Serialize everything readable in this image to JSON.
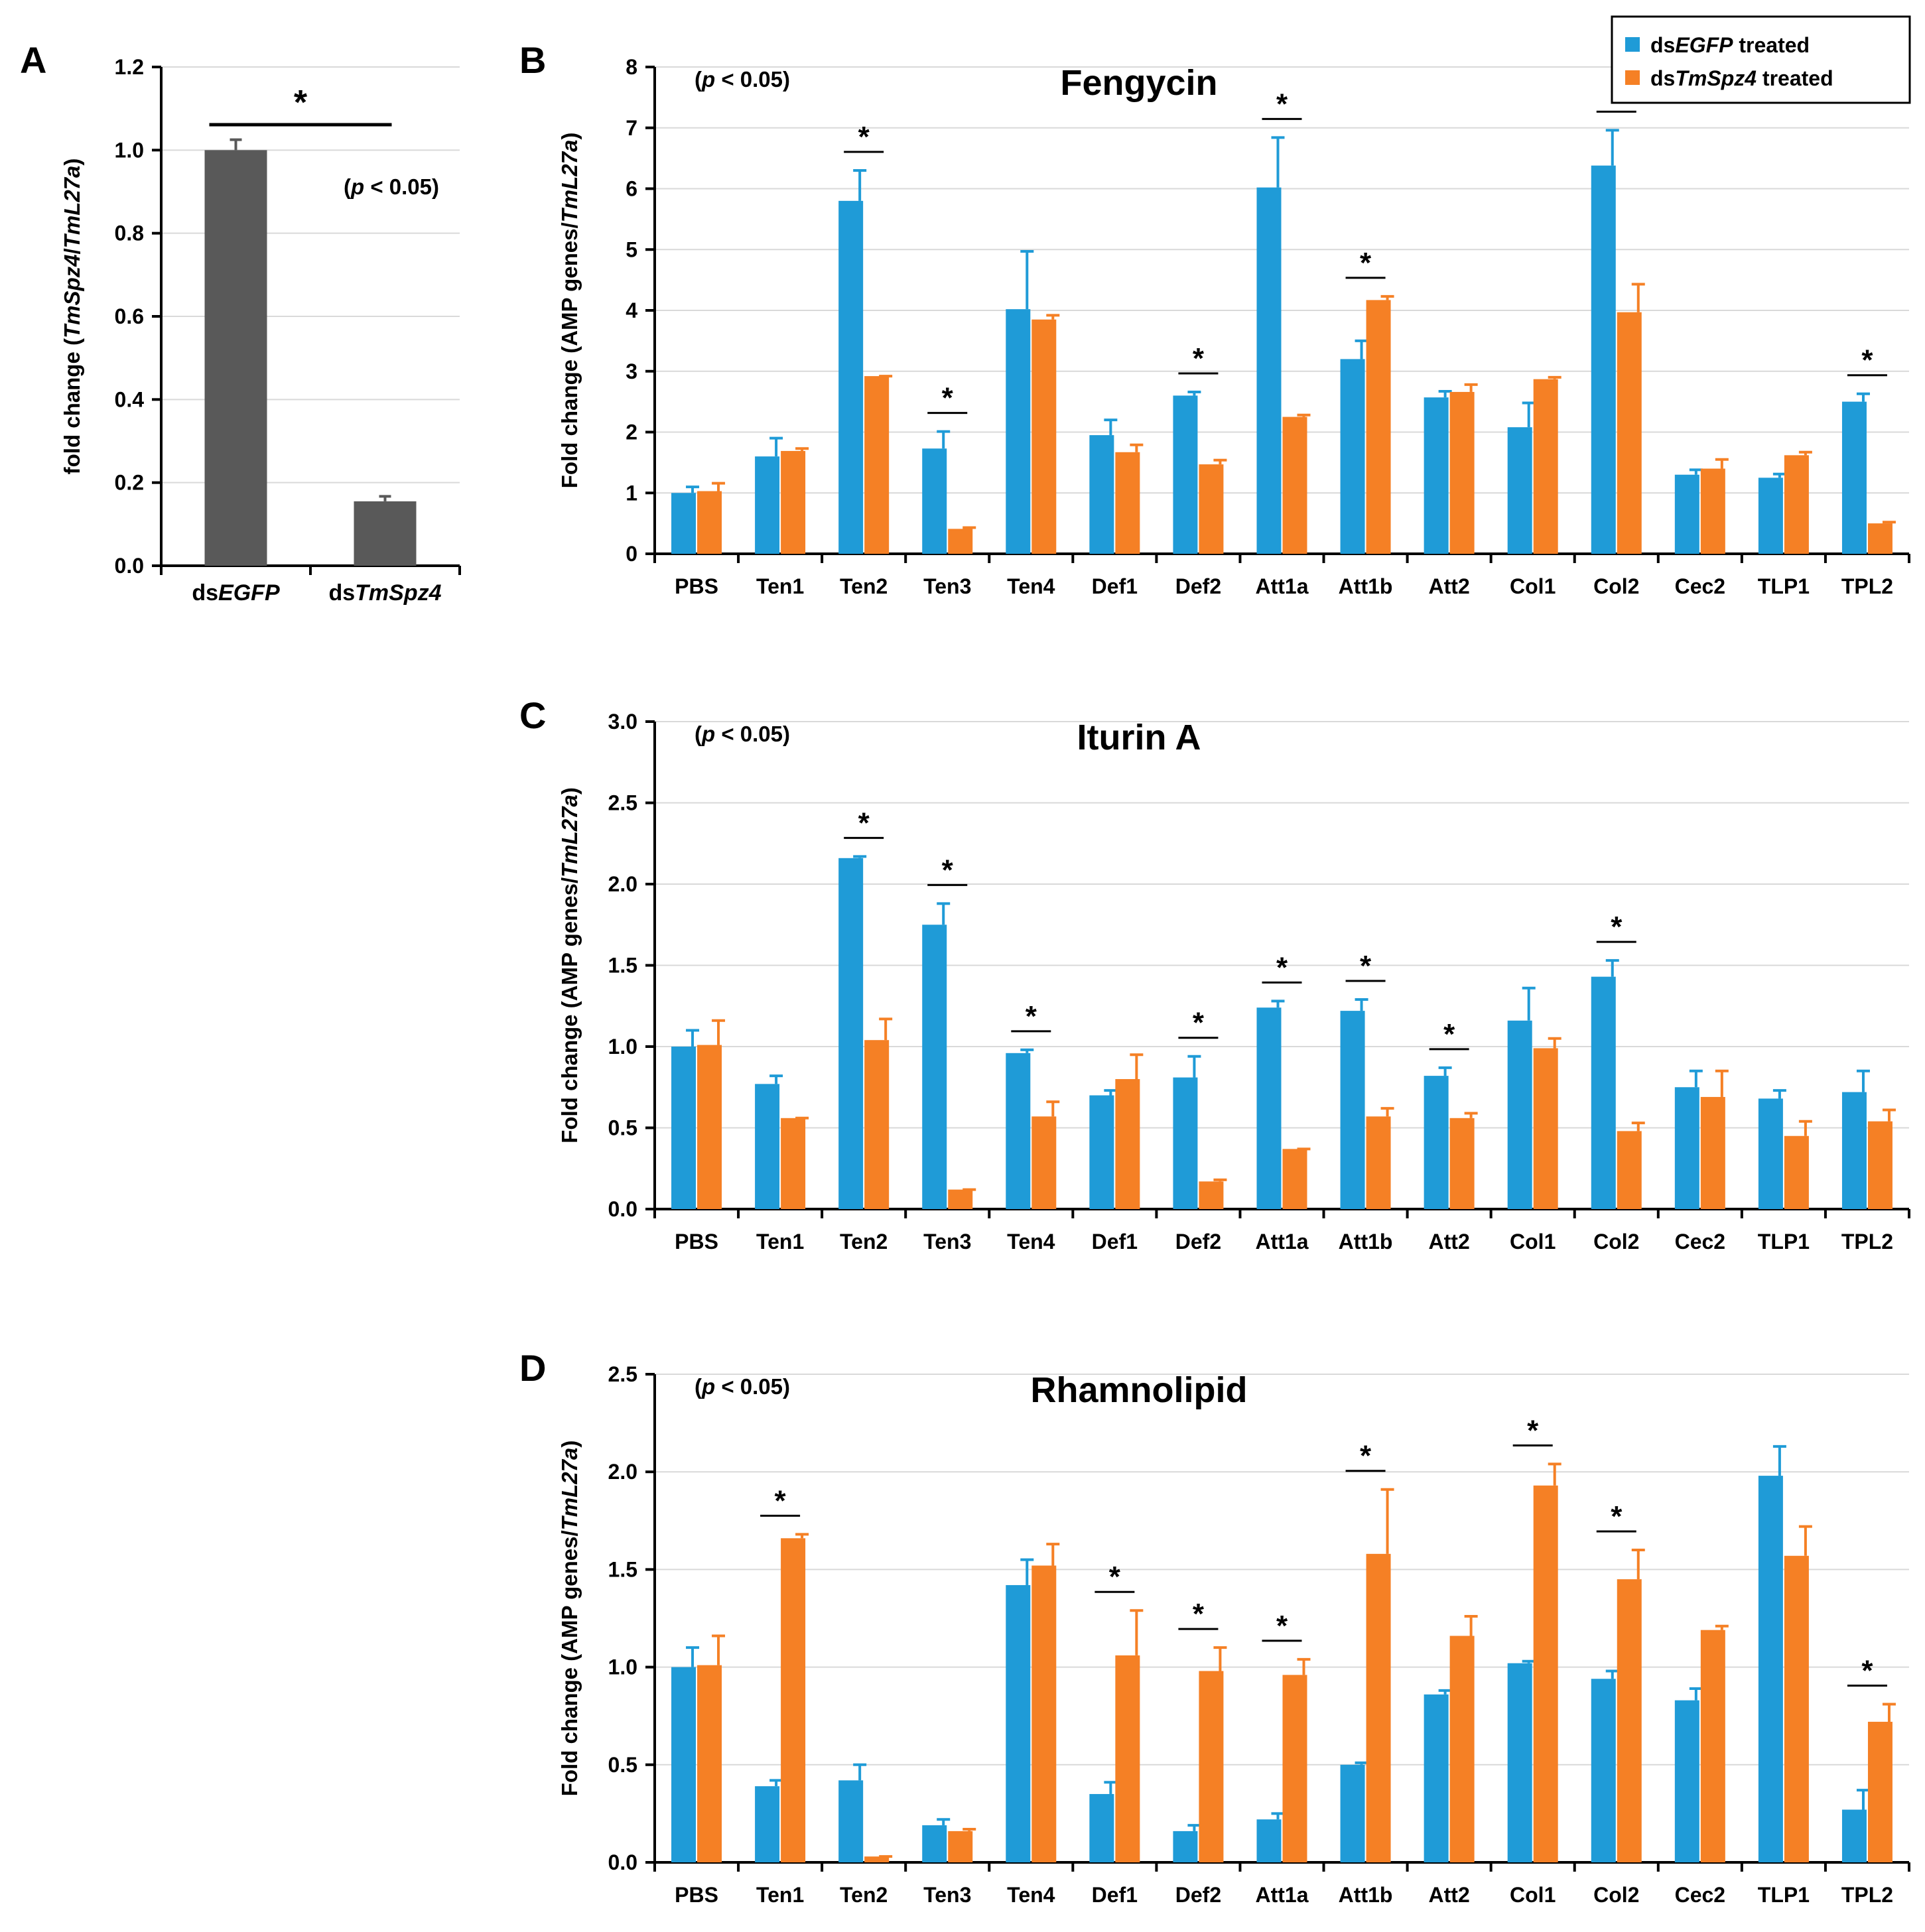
{
  "colors": {
    "egfp": "#1f9bd7",
    "spz4": "#f58025",
    "grey_bar": "#595959",
    "grid": "#d9d9d9"
  },
  "legend": {
    "item1_prefix": "ds",
    "item1_gene": "EGFP",
    "item1_suffix": " treated",
    "item2_prefix": "ds",
    "item2_gene": "TmSpz4",
    "item2_suffix": " treated"
  },
  "chart_data": [
    {
      "panel": "A",
      "type": "bar",
      "title": "",
      "note": "(p < 0.05)",
      "ylabel": "fold change (TmSpz4/TmL27a)",
      "ylim": [
        0,
        1.2
      ],
      "yticks": [
        "0.0",
        "0.2",
        "0.4",
        "0.6",
        "0.8",
        "1.0",
        "1.2"
      ],
      "categories": [
        "dsEGFP",
        "dsTmSpz4"
      ],
      "category_parts": [
        [
          "ds",
          "EGFP"
        ],
        [
          "ds",
          "TmSpz4"
        ]
      ],
      "values": [
        1.0,
        0.155
      ],
      "errors": [
        0.025,
        0.012
      ],
      "significance": "*"
    },
    {
      "panel": "B",
      "type": "bar",
      "title": "Fengycin",
      "note": "(p < 0.05)",
      "ylabel": "Fold change (AMP genes/TmL27a)",
      "ylim": [
        0,
        8
      ],
      "yticks": [
        "0",
        "1",
        "2",
        "3",
        "4",
        "5",
        "6",
        "7",
        "8"
      ],
      "categories": [
        "PBS",
        "Ten1",
        "Ten2",
        "Ten3",
        "Ten4",
        "Def1",
        "Def2",
        "Att1a",
        "Att1b",
        "Att2",
        "Col1",
        "Col2",
        "Cec2",
        "TLP1",
        "TPL2"
      ],
      "series": [
        {
          "name": "dsEGFP treated",
          "values": [
            1.0,
            1.6,
            5.8,
            1.73,
            4.02,
            1.95,
            2.6,
            6.02,
            3.2,
            2.57,
            2.08,
            6.38,
            1.3,
            1.25,
            2.5
          ],
          "errors": [
            0.1,
            0.3,
            0.5,
            0.28,
            0.95,
            0.25,
            0.06,
            0.82,
            0.3,
            0.1,
            0.4,
            0.58,
            0.08,
            0.06,
            0.13
          ]
        },
        {
          "name": "dsTmSpz4 treated",
          "values": [
            1.03,
            1.69,
            2.92,
            0.41,
            3.85,
            1.67,
            1.47,
            2.25,
            4.17,
            2.66,
            2.87,
            3.97,
            1.4,
            1.62,
            0.5
          ],
          "errors": [
            0.13,
            0.04,
            0.0,
            0.02,
            0.07,
            0.12,
            0.07,
            0.03,
            0.06,
            0.12,
            0.03,
            0.46,
            0.15,
            0.05,
            0.02
          ]
        }
      ],
      "significant_categories": [
        "Ten2",
        "Ten3",
        "Def2",
        "Att1a",
        "Att1b",
        "Col2",
        "TPL2"
      ]
    },
    {
      "panel": "C",
      "type": "bar",
      "title": "Iturin A",
      "note": "(p < 0.05)",
      "ylabel": "Fold change (AMP genes/TmL27a)",
      "ylim": [
        0,
        3.0
      ],
      "yticks": [
        "0.0",
        "0.5",
        "1.0",
        "1.5",
        "2.0",
        "2.5",
        "3.0"
      ],
      "categories": [
        "PBS",
        "Ten1",
        "Ten2",
        "Ten3",
        "Ten4",
        "Def1",
        "Def2",
        "Att1a",
        "Att1b",
        "Att2",
        "Col1",
        "Col2",
        "Cec2",
        "TLP1",
        "TPL2"
      ],
      "series": [
        {
          "name": "dsEGFP treated",
          "values": [
            1.0,
            0.77,
            2.16,
            1.75,
            0.96,
            0.7,
            0.81,
            1.24,
            1.22,
            0.82,
            1.16,
            1.43,
            0.75,
            0.68,
            0.72
          ],
          "errors": [
            0.1,
            0.05,
            0.01,
            0.13,
            0.02,
            0.03,
            0.13,
            0.04,
            0.07,
            0.05,
            0.2,
            0.1,
            0.1,
            0.05,
            0.13
          ]
        },
        {
          "name": "dsTmSpz4 treated",
          "values": [
            1.01,
            0.56,
            1.04,
            0.12,
            0.57,
            0.8,
            0.17,
            0.37,
            0.57,
            0.56,
            0.99,
            0.48,
            0.69,
            0.45,
            0.54
          ],
          "errors": [
            0.15,
            0.0,
            0.13,
            0.0,
            0.09,
            0.15,
            0.01,
            0.0,
            0.05,
            0.03,
            0.06,
            0.05,
            0.16,
            0.09,
            0.07
          ]
        }
      ],
      "significant_categories": [
        "Ten2",
        "Ten3",
        "Ten4",
        "Def2",
        "Att1a",
        "Att1b",
        "Att2",
        "Col2"
      ]
    },
    {
      "panel": "D",
      "type": "bar",
      "title": "Rhamnolipid",
      "note": "(p < 0.05)",
      "ylabel": "Fold change (AMP genes/TmL27a)",
      "ylim": [
        0,
        2.5
      ],
      "yticks": [
        "0.0",
        "0.5",
        "1.0",
        "1.5",
        "2.0",
        "2.5"
      ],
      "categories": [
        "PBS",
        "Ten1",
        "Ten2",
        "Ten3",
        "Ten4",
        "Def1",
        "Def2",
        "Att1a",
        "Att1b",
        "Att2",
        "Col1",
        "Col2",
        "Cec2",
        "TLP1",
        "TPL2"
      ],
      "series": [
        {
          "name": "dsEGFP treated",
          "values": [
            1.0,
            0.39,
            0.42,
            0.19,
            1.42,
            0.35,
            0.16,
            0.22,
            0.5,
            0.86,
            1.02,
            0.94,
            0.83,
            1.98,
            0.27
          ],
          "errors": [
            0.1,
            0.03,
            0.08,
            0.03,
            0.13,
            0.06,
            0.03,
            0.03,
            0.01,
            0.02,
            0.01,
            0.04,
            0.06,
            0.15,
            0.1
          ]
        },
        {
          "name": "dsTmSpz4 treated",
          "values": [
            1.01,
            1.66,
            0.03,
            0.16,
            1.52,
            1.06,
            0.98,
            0.96,
            1.58,
            1.16,
            1.93,
            1.45,
            1.19,
            1.57,
            0.72
          ],
          "errors": [
            0.15,
            0.02,
            0.0,
            0.01,
            0.11,
            0.23,
            0.12,
            0.08,
            0.33,
            0.1,
            0.11,
            0.15,
            0.02,
            0.15,
            0.09
          ]
        }
      ],
      "significant_categories": [
        "Ten1",
        "Def1",
        "Def2",
        "Att1a",
        "Att1b",
        "Col1",
        "Col2",
        "TPL2"
      ]
    }
  ]
}
